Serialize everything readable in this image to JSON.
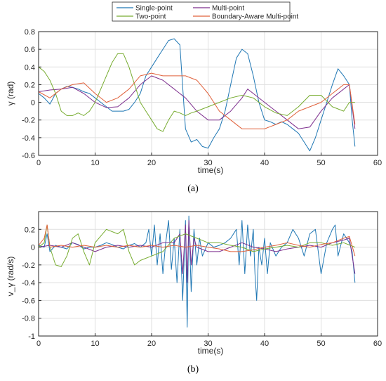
{
  "legend": {
    "entries": [
      {
        "name": "Single-point",
        "color": "#1f77b4"
      },
      {
        "name": "Multi-point",
        "color": "#7e2f8e"
      },
      {
        "name": "Two-point",
        "color": "#77ac30"
      },
      {
        "name": "Boundary-Aware Multi-point",
        "color": "#e0613b"
      }
    ]
  },
  "captions": {
    "a": "(a)",
    "b": "(b)"
  },
  "chart_data": [
    {
      "type": "line",
      "panel": "a",
      "xlabel": "time(s)",
      "ylabel": "γ (rad)",
      "xlim": [
        0,
        60
      ],
      "ylim": [
        -0.6,
        0.8
      ],
      "xticks": [
        0,
        10,
        20,
        30,
        40,
        50,
        60
      ],
      "yticks": [
        -0.6,
        -0.4,
        -0.2,
        0,
        0.2,
        0.4,
        0.6,
        0.8
      ],
      "grid": true,
      "legend_position": "top-center",
      "series": [
        {
          "name": "Single-point",
          "color": "#1f77b4",
          "x": [
            0,
            1,
            2,
            3,
            4,
            5,
            6,
            7,
            8,
            9,
            10,
            11,
            12,
            13,
            14,
            15,
            16,
            17,
            18,
            19,
            20,
            21,
            22,
            23,
            24,
            25,
            26,
            27,
            28,
            29,
            30,
            31,
            32,
            33,
            34,
            35,
            36,
            37,
            38,
            39,
            40,
            41,
            42,
            43,
            44,
            45,
            46,
            47,
            48,
            49,
            50,
            51,
            52,
            53,
            54,
            55,
            55.5,
            56
          ],
          "y": [
            0.1,
            0.05,
            -0.02,
            0.1,
            0.15,
            0.18,
            0.17,
            0.15,
            0.12,
            0.1,
            0.05,
            0.0,
            -0.05,
            -0.1,
            -0.1,
            -0.1,
            -0.08,
            0.0,
            0.1,
            0.3,
            0.4,
            0.5,
            0.6,
            0.7,
            0.72,
            0.65,
            -0.3,
            -0.45,
            -0.42,
            -0.5,
            -0.52,
            -0.4,
            -0.3,
            -0.1,
            0.2,
            0.5,
            0.6,
            0.55,
            0.3,
            0.0,
            -0.2,
            -0.22,
            -0.25,
            -0.22,
            -0.25,
            -0.3,
            -0.35,
            -0.45,
            -0.55,
            -0.4,
            -0.2,
            0.0,
            0.2,
            0.38,
            0.3,
            0.2,
            -0.2,
            -0.5
          ]
        },
        {
          "name": "Multi-point",
          "color": "#7e2f8e",
          "x": [
            0,
            2,
            4,
            6,
            8,
            10,
            12,
            14,
            16,
            18,
            20,
            22,
            24,
            26,
            28,
            30,
            32,
            34,
            36,
            37,
            38,
            40,
            42,
            44,
            46,
            48,
            50,
            52,
            54,
            55,
            56
          ],
          "y": [
            0.12,
            0.14,
            0.15,
            0.17,
            0.1,
            0.0,
            -0.06,
            -0.05,
            0.05,
            0.2,
            0.3,
            0.25,
            0.15,
            0.05,
            -0.1,
            -0.2,
            -0.2,
            -0.1,
            0.05,
            0.15,
            0.1,
            0.0,
            -0.1,
            -0.2,
            -0.3,
            -0.28,
            -0.1,
            0.05,
            0.15,
            0.2,
            -0.3
          ]
        },
        {
          "name": "Two-point",
          "color": "#77ac30",
          "x": [
            0,
            1,
            2,
            3,
            4,
            5,
            6,
            7,
            8,
            9,
            10,
            11,
            12,
            13,
            14,
            15,
            16,
            17,
            18,
            19,
            20,
            21,
            22,
            23,
            24,
            25,
            26,
            27,
            28,
            30,
            32,
            34,
            36,
            38,
            40,
            42,
            44,
            46,
            48,
            50,
            52,
            54,
            55,
            56
          ],
          "y": [
            0.4,
            0.35,
            0.25,
            0.1,
            -0.1,
            -0.15,
            -0.15,
            -0.12,
            -0.15,
            -0.1,
            0.0,
            0.15,
            0.3,
            0.45,
            0.55,
            0.55,
            0.4,
            0.2,
            0.0,
            -0.1,
            -0.2,
            -0.3,
            -0.33,
            -0.2,
            -0.1,
            -0.12,
            -0.15,
            -0.12,
            -0.1,
            -0.05,
            0.0,
            0.05,
            0.08,
            0.05,
            -0.05,
            -0.12,
            -0.15,
            -0.05,
            0.08,
            0.08,
            -0.05,
            -0.1,
            0.0,
            0.0
          ]
        },
        {
          "name": "Boundary-Aware Multi-point",
          "color": "#e0613b",
          "x": [
            0,
            2,
            4,
            6,
            8,
            10,
            12,
            14,
            16,
            18,
            20,
            22,
            24,
            26,
            28,
            30,
            32,
            34,
            36,
            38,
            40,
            42,
            44,
            46,
            48,
            50,
            52,
            54,
            55,
            56
          ],
          "y": [
            0.12,
            0.05,
            0.15,
            0.2,
            0.22,
            0.1,
            0.0,
            0.05,
            0.15,
            0.3,
            0.33,
            0.3,
            0.3,
            0.3,
            0.25,
            0.1,
            -0.1,
            -0.2,
            -0.3,
            -0.3,
            -0.3,
            -0.25,
            -0.2,
            -0.1,
            -0.05,
            0.0,
            0.1,
            0.2,
            0.2,
            -0.25
          ]
        }
      ]
    },
    {
      "type": "line",
      "panel": "b",
      "xlabel": "time(s)",
      "ylabel": "v_γ (rad/s)",
      "xlim": [
        0,
        60
      ],
      "ylim": [
        -1,
        0.4
      ],
      "xticks": [
        0,
        10,
        20,
        30,
        40,
        50,
        60
      ],
      "yticks": [
        -1,
        -0.8,
        -0.6,
        -0.4,
        -0.2,
        0,
        0.2
      ],
      "grid": true,
      "series": [
        {
          "name": "Single-point",
          "color": "#1f77b4",
          "x": [
            0,
            1,
            1.5,
            2,
            3,
            4,
            5,
            6,
            7,
            8,
            9,
            10,
            11,
            12,
            13,
            14,
            15,
            16,
            17,
            18,
            19,
            19.5,
            20,
            20.5,
            21,
            21.5,
            22,
            22.5,
            23,
            23.5,
            24,
            24.5,
            25,
            25.5,
            26,
            26.3,
            26.6,
            27,
            27.5,
            28,
            28.5,
            29,
            30,
            31,
            32,
            33,
            34,
            35,
            35.5,
            36,
            36.5,
            37,
            37.5,
            38,
            38.3,
            38.6,
            39,
            39.5,
            40,
            40.5,
            41,
            42,
            43,
            44,
            45,
            46,
            47,
            48,
            49,
            50,
            51,
            52,
            52.5,
            53,
            54,
            55,
            55.5,
            56
          ],
          "y": [
            0.02,
            0.0,
            0.15,
            -0.05,
            0.02,
            0.0,
            -0.02,
            0.05,
            0.03,
            -0.02,
            0.0,
            0.0,
            0.02,
            0.05,
            0.03,
            0.0,
            -0.02,
            0.02,
            0.04,
            0.0,
            0.05,
            0.2,
            -0.1,
            0.25,
            -0.2,
            0.15,
            -0.3,
            0.05,
            0.3,
            -0.25,
            0.1,
            -0.4,
            0.2,
            -0.6,
            0.3,
            -0.9,
            0.35,
            -0.5,
            0.2,
            -0.2,
            0.1,
            -0.1,
            0.05,
            0.0,
            0.02,
            0.05,
            0.1,
            0.2,
            -0.2,
            0.3,
            -0.3,
            0.25,
            -0.1,
            0.2,
            -0.3,
            -0.6,
            0.0,
            -0.2,
            0.1,
            -0.3,
            0.05,
            -0.1,
            0.0,
            0.05,
            0.2,
            0.1,
            -0.1,
            0.15,
            0.2,
            -0.3,
            0.05,
            0.2,
            0.25,
            -0.1,
            0.15,
            0.05,
            -0.05,
            -0.4
          ]
        },
        {
          "name": "Multi-point",
          "color": "#7e2f8e",
          "x": [
            0,
            2,
            4,
            6,
            8,
            10,
            12,
            14,
            16,
            18,
            20,
            22,
            24,
            25,
            25.5,
            26,
            26.3,
            26.6,
            27,
            27.5,
            28,
            30,
            32,
            34,
            36,
            38,
            40,
            42,
            44,
            46,
            48,
            50,
            52,
            54,
            55,
            56
          ],
          "y": [
            0.0,
            0.02,
            0.0,
            0.05,
            0.0,
            -0.05,
            0.0,
            0.02,
            0.0,
            0.02,
            0.0,
            0.05,
            0.05,
            0.15,
            -0.3,
            0.25,
            -0.4,
            0.3,
            -0.2,
            0.1,
            0.0,
            -0.05,
            -0.05,
            0.0,
            0.05,
            0.0,
            -0.02,
            -0.05,
            -0.02,
            0.0,
            0.02,
            0.0,
            0.05,
            0.08,
            0.1,
            -0.3
          ]
        },
        {
          "name": "Two-point",
          "color": "#77ac30",
          "x": [
            0,
            1,
            1.5,
            2,
            3,
            4,
            5,
            6,
            7,
            8,
            9,
            10,
            12,
            14,
            15,
            16,
            17,
            18,
            20,
            22,
            24,
            26,
            28,
            30,
            32,
            34,
            36,
            38,
            40,
            42,
            44,
            46,
            48,
            50,
            52,
            54,
            56
          ],
          "y": [
            0.0,
            0.05,
            0.25,
            0.0,
            -0.2,
            -0.22,
            -0.1,
            0.1,
            0.15,
            -0.05,
            -0.2,
            0.05,
            0.2,
            0.15,
            0.2,
            -0.05,
            -0.2,
            -0.15,
            -0.1,
            -0.05,
            0.1,
            0.15,
            0.1,
            0.05,
            0.05,
            0.02,
            0.0,
            -0.05,
            -0.02,
            0.0,
            0.02,
            0.0,
            0.05,
            0.05,
            0.02,
            0.05,
            0.0
          ]
        },
        {
          "name": "Boundary-Aware Multi-point",
          "color": "#e0613b",
          "x": [
            0,
            1,
            1.5,
            2,
            4,
            6,
            8,
            10,
            12,
            14,
            16,
            18,
            20,
            22,
            24,
            26,
            28,
            30,
            32,
            34,
            36,
            38,
            40,
            42,
            44,
            46,
            48,
            50,
            52,
            54,
            55,
            56
          ],
          "y": [
            0.02,
            0.1,
            0.25,
            0.0,
            0.02,
            0.0,
            0.02,
            0.0,
            0.02,
            0.0,
            0.02,
            0.0,
            0.02,
            0.0,
            0.02,
            0.0,
            0.02,
            0.0,
            -0.02,
            -0.05,
            -0.05,
            -0.03,
            0.0,
            0.02,
            0.05,
            0.02,
            0.0,
            0.03,
            0.05,
            0.1,
            0.12,
            -0.1
          ]
        }
      ]
    }
  ]
}
